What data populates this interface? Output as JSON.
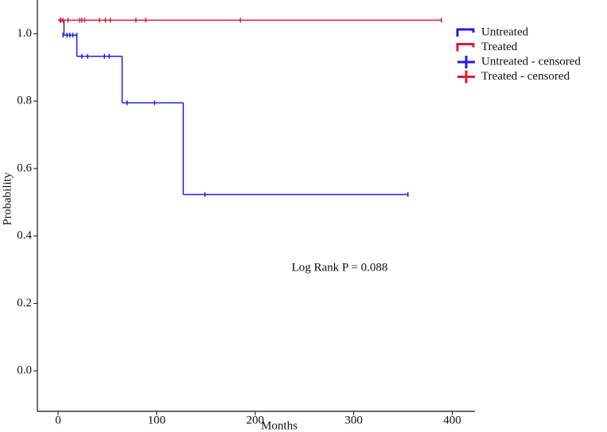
{
  "chart_data": {
    "type": "survival",
    "xlabel": "Months",
    "ylabel": "Probability",
    "annotation": "Log Rank P = 0.088",
    "xlim": [
      -21,
      423
    ],
    "ylim": [
      -0.12,
      1.1
    ],
    "xticks": [
      0,
      100,
      200,
      300,
      400
    ],
    "yticks": [
      {
        "value": 0,
        "label": "0.0"
      },
      0.2,
      0.4,
      0.6,
      0.8,
      {
        "value": 1,
        "label": "1.0"
      }
    ],
    "series": [
      {
        "name": "Untreated",
        "kind": "step",
        "color": "#1f1fe0",
        "x": [
          0,
          6,
          19,
          65,
          127,
          355
        ],
        "values": [
          1.04,
          0.996,
          0.933,
          0.795,
          0.523,
          0.523
        ]
      },
      {
        "name": "Treated",
        "kind": "step",
        "color": "#d81b3c",
        "x": [
          0,
          389
        ],
        "values": [
          1.04,
          1.04
        ]
      },
      {
        "name": "Untreated - censored",
        "kind": "censored",
        "color": "#1f1fe0",
        "x": [
          5,
          9,
          12,
          15,
          19,
          24,
          30,
          47,
          52,
          70,
          98,
          149,
          355
        ],
        "values": [
          0.996,
          0.996,
          0.996,
          0.996,
          0.996,
          0.933,
          0.933,
          0.933,
          0.933,
          0.795,
          0.795,
          0.523,
          0.523
        ]
      },
      {
        "name": "Treated - censored",
        "kind": "censored",
        "color": "#d81b3c",
        "x": [
          2,
          3,
          5,
          10,
          22,
          24,
          27,
          42,
          48,
          53,
          79,
          89,
          185,
          389
        ],
        "values": [
          1.04,
          1.04,
          1.04,
          1.04,
          1.04,
          1.04,
          1.04,
          1.04,
          1.04,
          1.04,
          1.04,
          1.04,
          1.04,
          1.04
        ]
      }
    ]
  }
}
